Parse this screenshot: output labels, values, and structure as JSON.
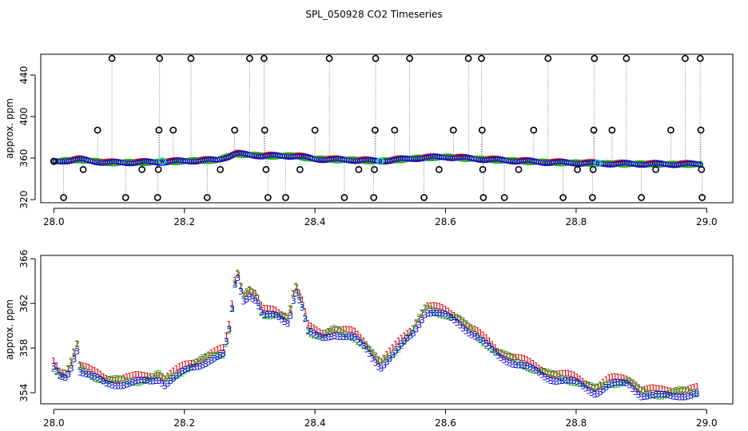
{
  "title": "SPL_050928  CO2 Timeseries",
  "chart_data": [
    {
      "type": "scatter",
      "panel": "top",
      "title": "SPL_050928  CO2 Timeseries",
      "xlabel": "",
      "ylabel": "approx. ppm",
      "xlim": [
        27.98,
        29.04
      ],
      "ylim": [
        317,
        460
      ],
      "xticks": [
        28.0,
        28.2,
        28.4,
        28.6,
        28.8,
        29.0
      ],
      "xtick_labels": [
        "28.0",
        "28.2",
        "28.4",
        "28.6",
        "28.8",
        "29.0"
      ],
      "yticks": [
        320,
        360,
        400,
        440
      ],
      "ytick_labels": [
        "320",
        "360",
        "400",
        "440"
      ],
      "series_colors": {
        "1": "#d40000",
        "2": "#22aa22",
        "3": "#0000dd",
        "flag": "#000000",
        "cal": "#22ccdd"
      },
      "baseline_knots": [
        [
          28.0,
          356.5
        ],
        [
          28.04,
          358.5
        ],
        [
          28.08,
          355.5
        ],
        [
          28.16,
          356
        ],
        [
          28.22,
          357.5
        ],
        [
          28.25,
          358
        ],
        [
          28.28,
          364
        ],
        [
          28.32,
          362
        ],
        [
          28.37,
          362
        ],
        [
          28.4,
          359
        ],
        [
          28.46,
          358
        ],
        [
          28.5,
          357
        ],
        [
          28.56,
          360
        ],
        [
          28.6,
          361
        ],
        [
          28.65,
          359
        ],
        [
          28.75,
          356
        ],
        [
          28.85,
          354.5
        ],
        [
          28.95,
          354
        ],
        [
          28.99,
          354
        ]
      ],
      "flagged_points": [
        [
          28.0,
          357
        ],
        [
          28.015,
          322
        ],
        [
          28.045,
          349
        ],
        [
          28.067,
          387
        ],
        [
          28.089,
          456
        ],
        [
          28.11,
          322
        ],
        [
          28.135,
          349
        ],
        [
          28.159,
          322
        ],
        [
          28.16,
          349
        ],
        [
          28.161,
          387
        ],
        [
          28.162,
          456
        ],
        [
          28.183,
          387
        ],
        [
          28.21,
          456
        ],
        [
          28.235,
          322
        ],
        [
          28.255,
          349
        ],
        [
          28.277,
          387
        ],
        [
          28.3,
          456
        ],
        [
          28.322,
          456
        ],
        [
          28.323,
          387
        ],
        [
          28.325,
          349
        ],
        [
          28.328,
          322
        ],
        [
          28.355,
          322
        ],
        [
          28.377,
          349
        ],
        [
          28.4,
          387
        ],
        [
          28.422,
          456
        ],
        [
          28.445,
          322
        ],
        [
          28.467,
          349
        ],
        [
          28.49,
          322
        ],
        [
          28.491,
          349
        ],
        [
          28.492,
          387
        ],
        [
          28.493,
          456
        ],
        [
          28.522,
          387
        ],
        [
          28.545,
          456
        ],
        [
          28.567,
          322
        ],
        [
          28.59,
          349
        ],
        [
          28.612,
          387
        ],
        [
          28.635,
          456
        ],
        [
          28.655,
          456
        ],
        [
          28.656,
          387
        ],
        [
          28.657,
          349
        ],
        [
          28.658,
          322
        ],
        [
          28.69,
          322
        ],
        [
          28.712,
          349
        ],
        [
          28.735,
          387
        ],
        [
          28.757,
          456
        ],
        [
          28.78,
          322
        ],
        [
          28.802,
          349
        ],
        [
          28.825,
          322
        ],
        [
          28.826,
          349
        ],
        [
          28.827,
          387
        ],
        [
          28.828,
          456
        ],
        [
          28.855,
          387
        ],
        [
          28.877,
          456
        ],
        [
          28.9,
          322
        ],
        [
          28.922,
          349
        ],
        [
          28.945,
          387
        ],
        [
          28.967,
          456
        ],
        [
          28.99,
          456
        ],
        [
          28.991,
          387
        ],
        [
          28.992,
          349
        ],
        [
          28.993,
          322
        ]
      ],
      "cal_points": [
        [
          28.166,
          357
        ],
        [
          28.5,
          357
        ],
        [
          28.833,
          355
        ]
      ]
    },
    {
      "type": "scatter",
      "panel": "bottom",
      "title": "",
      "xlabel": "",
      "ylabel": "approx. ppm",
      "xlim": [
        27.98,
        29.04
      ],
      "ylim": [
        353,
        366.3
      ],
      "xticks": [
        28.0,
        28.2,
        28.4,
        28.6,
        28.8,
        29.0
      ],
      "xtick_labels": [
        "28.0",
        "28.2",
        "28.4",
        "28.6",
        "28.8",
        "29.0"
      ],
      "yticks": [
        354,
        358,
        362,
        366
      ],
      "ytick_labels": [
        "354",
        "358",
        "362",
        "366"
      ],
      "markers": [
        "1",
        "2",
        "3"
      ],
      "series": [
        {
          "name": "1",
          "color": "#d40000",
          "offset": 0.3
        },
        {
          "name": "2",
          "color": "#22aa22",
          "offset": 0.0
        },
        {
          "name": "3",
          "color": "#0000dd",
          "offset": -0.25
        }
      ],
      "knots": [
        [
          28.0,
          356.3
        ],
        [
          28.01,
          355.5
        ],
        [
          28.02,
          355.6
        ],
        [
          28.03,
          357.0
        ],
        [
          28.035,
          358.5
        ],
        [
          28.04,
          356.2
        ],
        [
          28.06,
          355.5
        ],
        [
          28.08,
          355.0
        ],
        [
          28.1,
          355.0
        ],
        [
          28.12,
          355.0
        ],
        [
          28.15,
          355.2
        ],
        [
          28.16,
          355.5
        ],
        [
          28.17,
          355.0
        ],
        [
          28.2,
          356.0
        ],
        [
          28.22,
          356.6
        ],
        [
          28.24,
          357.2
        ],
        [
          28.26,
          357.5
        ],
        [
          28.27,
          360.0
        ],
        [
          28.28,
          365.0
        ],
        [
          28.29,
          362.5
        ],
        [
          28.3,
          363.0
        ],
        [
          28.31,
          362.5
        ],
        [
          28.32,
          361.0
        ],
        [
          28.34,
          361.0
        ],
        [
          28.36,
          360.5
        ],
        [
          28.37,
          363.5
        ],
        [
          28.38,
          362.0
        ],
        [
          28.39,
          359.5
        ],
        [
          28.41,
          359.0
        ],
        [
          28.43,
          359.5
        ],
        [
          28.46,
          359.0
        ],
        [
          28.48,
          358.0
        ],
        [
          28.5,
          356.5
        ],
        [
          28.52,
          357.5
        ],
        [
          28.55,
          359.5
        ],
        [
          28.57,
          361.5
        ],
        [
          28.6,
          361.0
        ],
        [
          28.62,
          360.5
        ],
        [
          28.65,
          359.0
        ],
        [
          28.68,
          357.5
        ],
        [
          28.72,
          356.5
        ],
        [
          28.76,
          355.5
        ],
        [
          28.8,
          355.0
        ],
        [
          28.83,
          354.2
        ],
        [
          28.85,
          354.8
        ],
        [
          28.88,
          355.0
        ],
        [
          28.9,
          354.0
        ],
        [
          28.93,
          353.8
        ],
        [
          28.96,
          354.0
        ],
        [
          28.99,
          354.0
        ]
      ]
    }
  ]
}
